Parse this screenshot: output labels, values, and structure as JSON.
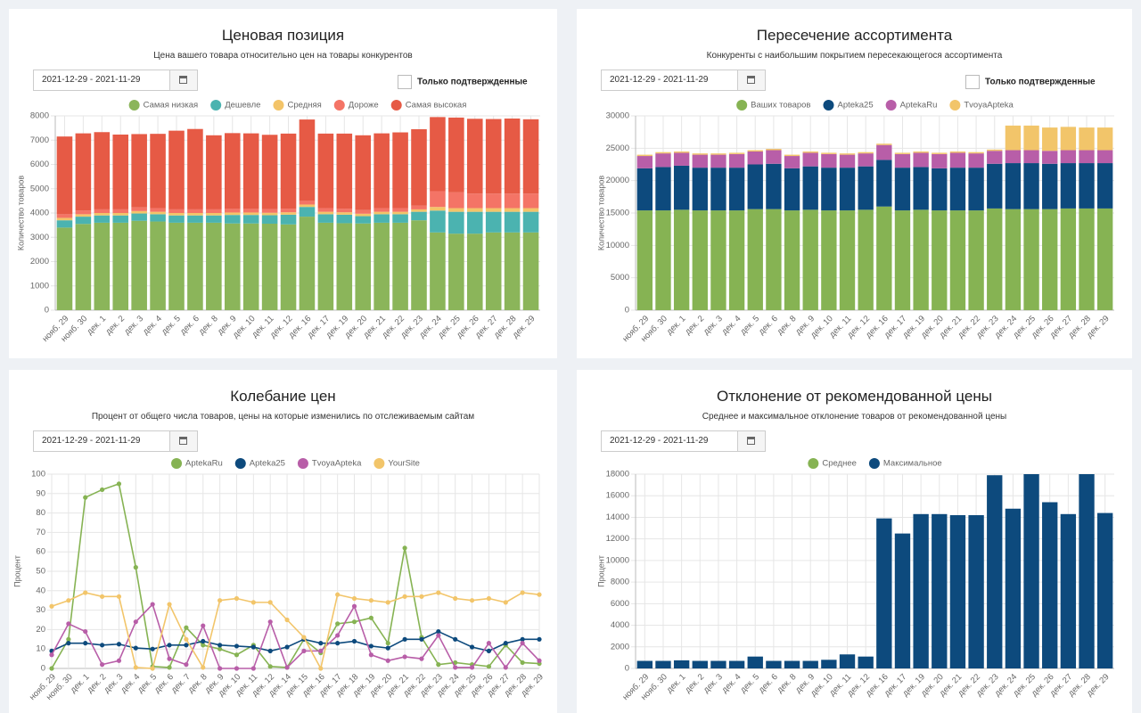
{
  "chart_data": [
    {
      "type": "bar",
      "stacked": true,
      "title": "Ценовая позиция",
      "subtitle": "Цена вашего товара относительно цен на товары конкурентов",
      "date_range": "2021-12-29 - 2021-11-29",
      "filter_label": "Только подтвержденные",
      "y_label": "Количество товаров",
      "grid": true,
      "categories": [
        "нояб. 29",
        "нояб. 30",
        "дек. 1",
        "дек. 2",
        "дек. 3",
        "дек. 4",
        "дек. 5",
        "дек. 6",
        "дек. 8",
        "дек. 9",
        "дек. 10",
        "дек. 11",
        "дек. 12",
        "дек. 16",
        "дек. 17",
        "дек. 19",
        "дек. 20",
        "дек. 21",
        "дек. 22",
        "дек. 23",
        "дек. 24",
        "дек. 25",
        "дек. 26",
        "дек. 27",
        "дек. 28",
        "дек. 29"
      ],
      "ylim": [
        0,
        8000
      ],
      "yticks": [
        0,
        1000,
        2000,
        3000,
        4000,
        5000,
        6000,
        7000,
        8000
      ],
      "series": [
        {
          "name": "Самая низкая",
          "color": "#8bb55a",
          "values": [
            3400,
            3550,
            3600,
            3600,
            3680,
            3650,
            3600,
            3600,
            3600,
            3570,
            3570,
            3560,
            3530,
            3850,
            3600,
            3580,
            3570,
            3600,
            3600,
            3700,
            3200,
            3150,
            3150,
            3200,
            3200,
            3200
          ]
        },
        {
          "name": "Дешевле",
          "color": "#4bb3b0",
          "values": [
            300,
            300,
            300,
            300,
            300,
            300,
            300,
            300,
            300,
            350,
            350,
            350,
            400,
            400,
            350,
            350,
            300,
            350,
            350,
            350,
            900,
            900,
            900,
            850,
            850,
            850
          ]
        },
        {
          "name": "Средняя",
          "color": "#f3c469",
          "values": [
            100,
            100,
            100,
            100,
            100,
            100,
            100,
            100,
            100,
            100,
            100,
            100,
            100,
            100,
            100,
            100,
            100,
            100,
            100,
            100,
            150,
            150,
            150,
            150,
            150,
            150
          ]
        },
        {
          "name": "Дороже",
          "color": "#f47466",
          "values": [
            150,
            150,
            150,
            150,
            150,
            150,
            150,
            150,
            150,
            150,
            150,
            150,
            150,
            150,
            150,
            150,
            150,
            150,
            150,
            150,
            650,
            650,
            600,
            600,
            600,
            600
          ]
        },
        {
          "name": "Самая высокая",
          "color": "#e65a45",
          "values": [
            3200,
            3180,
            3180,
            3080,
            3020,
            3060,
            3240,
            3310,
            3050,
            3120,
            3110,
            3060,
            3090,
            3350,
            3070,
            3090,
            3080,
            3080,
            3120,
            3150,
            3050,
            3080,
            3080,
            3070,
            3090,
            3060
          ]
        }
      ]
    },
    {
      "type": "bar",
      "stacked": true,
      "title": "Пересечение ассортимента",
      "subtitle": "Конкуренты с наибольшим покрытием пересекающегося ассортимента",
      "date_range": "2021-12-29 - 2021-11-29",
      "filter_label": "Только подтвержденные",
      "y_label": "Количество товаров",
      "grid": true,
      "categories": [
        "нояб. 29",
        "нояб. 30",
        "дек. 1",
        "дек. 2",
        "дек. 3",
        "дек. 4",
        "дек. 5",
        "дек. 6",
        "дек. 8",
        "дек. 9",
        "дек. 10",
        "дек. 11",
        "дек. 12",
        "дек. 16",
        "дек. 17",
        "дек. 19",
        "дек. 20",
        "дек. 21",
        "дек. 22",
        "дек. 23",
        "дек. 24",
        "дек. 25",
        "дек. 26",
        "дек. 27",
        "дек. 28",
        "дек. 29"
      ],
      "ylim": [
        0,
        30000
      ],
      "yticks": [
        0,
        5000,
        10000,
        15000,
        20000,
        25000,
        30000
      ],
      "series": [
        {
          "name": "Ваших товаров",
          "color": "#86b353",
          "values": [
            15400,
            15400,
            15500,
            15400,
            15400,
            15400,
            15600,
            15600,
            15400,
            15500,
            15400,
            15400,
            15500,
            16000,
            15400,
            15500,
            15400,
            15400,
            15400,
            15700,
            15600,
            15600,
            15600,
            15700,
            15700,
            15700
          ]
        },
        {
          "name": "Apteka25",
          "color": "#0d4a7d",
          "values": [
            6500,
            6700,
            6800,
            6600,
            6600,
            6600,
            6900,
            7000,
            6500,
            6700,
            6600,
            6600,
            6700,
            7200,
            6600,
            6600,
            6500,
            6600,
            6600,
            6900,
            7100,
            7100,
            7000,
            7000,
            7000,
            7000
          ]
        },
        {
          "name": "AptekaRu",
          "color": "#b85ea8",
          "values": [
            1900,
            2100,
            2000,
            2000,
            2000,
            2100,
            2000,
            2100,
            1900,
            2100,
            2100,
            2000,
            2000,
            2300,
            2100,
            2200,
            2200,
            2300,
            2200,
            2000,
            2000,
            2000,
            2000,
            2000,
            2000,
            2000
          ]
        },
        {
          "name": "TvoyaApteka",
          "color": "#f2c56a",
          "values": [
            200,
            200,
            200,
            200,
            200,
            200,
            200,
            200,
            200,
            200,
            200,
            200,
            200,
            200,
            200,
            200,
            200,
            200,
            200,
            200,
            3800,
            3800,
            3600,
            3600,
            3500,
            3500
          ]
        }
      ]
    },
    {
      "type": "line",
      "title": "Колебание цен",
      "subtitle": "Процент от общего числа товаров, цены на которые изменились по отслеживаемым сайтам",
      "date_range": "2021-12-29 - 2021-11-29",
      "y_label": "Процент",
      "grid": true,
      "categories": [
        "нояб. 29",
        "нояб. 30",
        "дек. 1",
        "дек. 2",
        "дек. 3",
        "дек. 4",
        "дек. 5",
        "дек. 6",
        "дек. 7",
        "дек. 8",
        "дек. 9",
        "дек. 10",
        "дек. 11",
        "дек. 12",
        "дек. 14",
        "дек. 15",
        "дек. 16",
        "дек. 17",
        "дек. 18",
        "дек. 19",
        "дек. 20",
        "дек. 21",
        "дек. 22",
        "дек. 23",
        "дек. 24",
        "дек. 25",
        "дек. 26",
        "дек. 27",
        "дек. 28",
        "дек. 29"
      ],
      "ylim": [
        0,
        100
      ],
      "yticks": [
        0,
        10,
        20,
        30,
        40,
        50,
        60,
        70,
        80,
        90,
        100
      ],
      "series": [
        {
          "name": "AptekaRu",
          "color": "#86b353",
          "values": [
            0,
            15,
            88,
            92,
            95,
            52,
            1,
            0.5,
            21,
            12,
            10,
            7,
            12,
            1,
            0.5,
            15,
            8,
            23,
            24,
            26,
            13,
            62,
            16,
            2,
            3,
            2,
            1,
            12,
            3,
            2.5
          ]
        },
        {
          "name": "Apteka25",
          "color": "#0d4a7d",
          "values": [
            9,
            13,
            13,
            12,
            12.5,
            10.5,
            10,
            12,
            12,
            14,
            12,
            11.5,
            11,
            9,
            11,
            15,
            13,
            13,
            14,
            11.5,
            10.5,
            15,
            15,
            19,
            15,
            11,
            9,
            13,
            15,
            15
          ]
        },
        {
          "name": "TvoyaApteka",
          "color": "#b85ea8",
          "values": [
            7,
            23,
            19,
            2,
            4,
            24,
            33,
            5,
            2,
            22,
            0,
            0,
            0,
            24,
            0.5,
            9,
            9,
            17,
            32,
            7,
            4,
            6,
            5,
            17,
            0.5,
            0.5,
            13,
            0.5,
            13,
            4
          ]
        },
        {
          "name": "YourSite",
          "color": "#f2c56a",
          "values": [
            32,
            35,
            39,
            37,
            37,
            0.5,
            0,
            33,
            15,
            0.5,
            35,
            36,
            34,
            34,
            25,
            16,
            0,
            38,
            36,
            35,
            34,
            37,
            37,
            39,
            36,
            35,
            36,
            34,
            39,
            38
          ]
        }
      ]
    },
    {
      "type": "bar",
      "stacked": true,
      "title": "Отклонение от рекомендованной цены",
      "subtitle": "Среднее и максимальное отклонение товаров от рекомендованной цены",
      "date_range": "2021-12-29 - 2021-11-29",
      "y_label": "Процент",
      "grid": true,
      "categories": [
        "нояб. 29",
        "нояб. 30",
        "дек. 1",
        "дек. 2",
        "дек. 3",
        "дек. 4",
        "дек. 5",
        "дек. 6",
        "дек. 8",
        "дек. 9",
        "дек. 10",
        "дек. 11",
        "дек. 12",
        "дек. 16",
        "дек. 17",
        "дек. 19",
        "дек. 20",
        "дек. 21",
        "дек. 22",
        "дек. 23",
        "дек. 24",
        "дек. 25",
        "дек. 26",
        "дек. 27",
        "дек. 28",
        "дек. 29"
      ],
      "ylim": [
        0,
        18000
      ],
      "yticks": [
        0,
        2000,
        4000,
        6000,
        8000,
        10000,
        12000,
        14000,
        16000,
        18000
      ],
      "series": [
        {
          "name": "Среднее",
          "color": "#86b353",
          "values": [
            0,
            0,
            0,
            0,
            0,
            0,
            0,
            0,
            0,
            0,
            0,
            0,
            0,
            0,
            0,
            0,
            0,
            0,
            0,
            0,
            0,
            0,
            0,
            0,
            0,
            0
          ]
        },
        {
          "name": "Максимальное",
          "color": "#0d4a7d",
          "values": [
            700,
            700,
            750,
            700,
            700,
            700,
            1100,
            700,
            700,
            700,
            800,
            1300,
            1100,
            13900,
            12500,
            14300,
            14300,
            14200,
            14200,
            17900,
            14800,
            18000,
            15400,
            14300,
            18000,
            14400
          ]
        }
      ]
    }
  ]
}
